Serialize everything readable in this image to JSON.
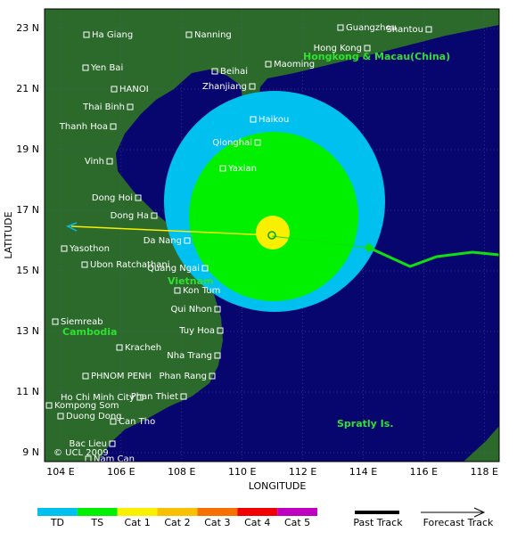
{
  "map": {
    "x_axis_label": "LONGITUDE",
    "y_axis_label": "LATITUDE",
    "lat_ticks": [
      "23 N",
      "21 N",
      "19 N",
      "17 N",
      "15 N",
      "13 N",
      "11 N",
      "9 N"
    ],
    "lon_ticks": [
      "104 E",
      "106 E",
      "108 E",
      "110 E",
      "112 E",
      "114 E",
      "116 E",
      "118 E"
    ],
    "places": [
      "Ha Giang",
      "Nanning",
      "Guangzhou",
      "Shantou",
      "Hong Kong",
      "Yen Bai",
      "Beihai",
      "Maoming",
      "HANOI",
      "Zhanjiang",
      "Thai Binh",
      "Haikou",
      "Thanh Hoa",
      "Qionghai",
      "Vinh",
      "Yaxian",
      "Dong Hoi",
      "Dong Ha",
      "Da Nang",
      "Yasothon",
      "Ubon Ratchathani",
      "Quang Ngai",
      "Kon Tum",
      "Qui Nhon",
      "Siemreab",
      "Tuy Hoa",
      "Kracheh",
      "Nha Trang",
      "PHNOM PENH",
      "Phan Rang",
      "Ho Chi Minh City",
      "Phan Thiet",
      "Kompong Som",
      "Duong Dong",
      "Can Tho",
      "Bac Lieu",
      "Nam Can"
    ],
    "regions": [
      "Hongkong & Macau(China)",
      "Vietnam",
      "Cambodia",
      "Spratly Is."
    ],
    "copyright": "© UCL 2009"
  },
  "legend": {
    "categories": [
      "TD",
      "TS",
      "Cat 1",
      "Cat 2",
      "Cat 3",
      "Cat 4",
      "Cat 5"
    ],
    "colors": [
      "#00c0f0",
      "#00f000",
      "#f8f000",
      "#f8c000",
      "#f87000",
      "#f00000",
      "#c000c0"
    ],
    "past_track": "Past Track",
    "forecast_track": "Forecast Track"
  }
}
